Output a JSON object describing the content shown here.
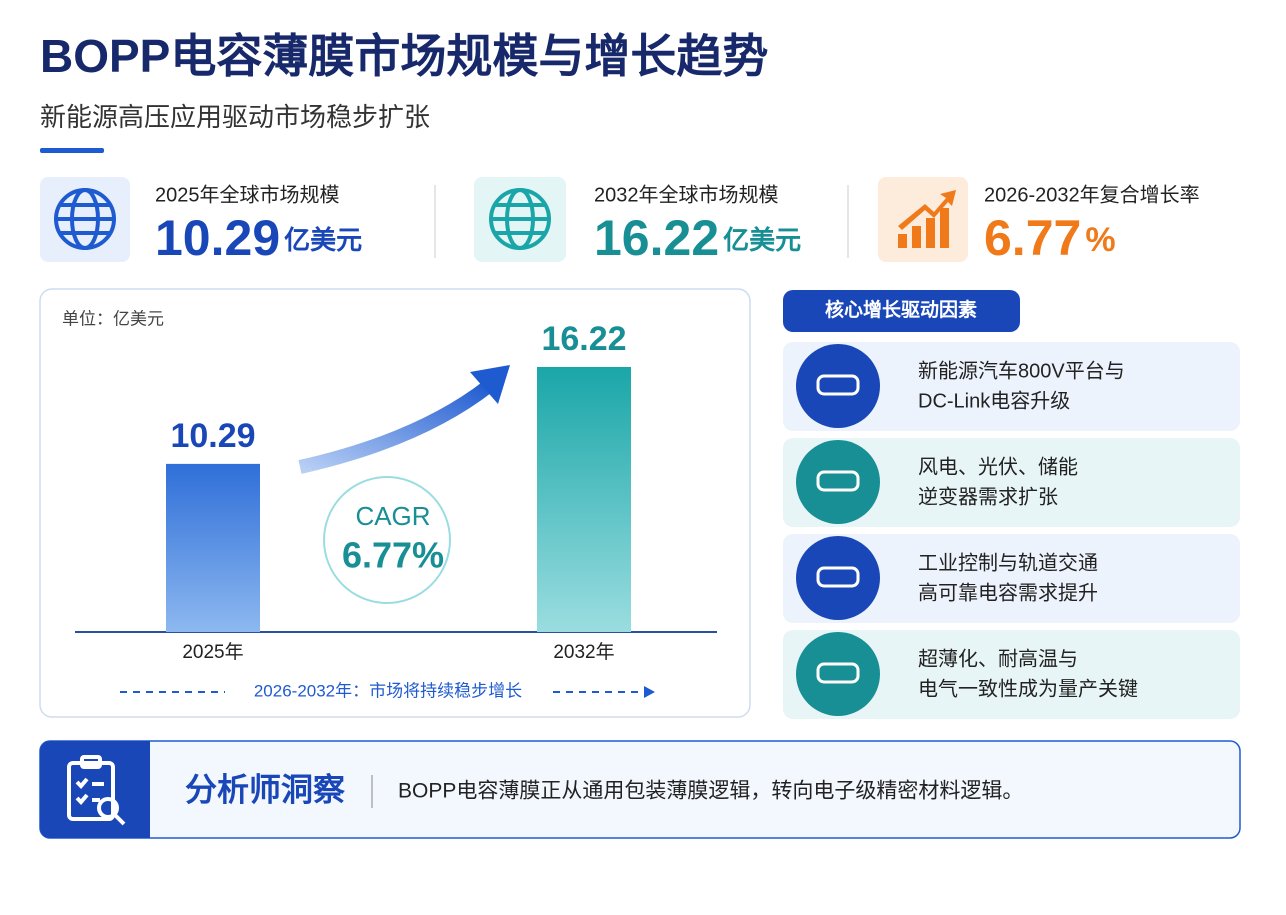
{
  "header": {
    "title": "BOPP电容薄膜市场规模与增长趋势",
    "subtitle": "新能源高压应用驱动市场稳步扩张"
  },
  "kpis": [
    {
      "label": "2025年全球市场规模",
      "value": "10.29",
      "unit": "亿美元"
    },
    {
      "label": "2032年全球市场规模",
      "value": "16.22",
      "unit": "亿美元"
    },
    {
      "label": "2026-2032年复合增长率",
      "value": "6.77",
      "unit": "%"
    }
  ],
  "chart_data": {
    "type": "bar",
    "unit_label": "单位：亿美元",
    "categories": [
      "2025年",
      "2032年"
    ],
    "values": [
      10.29,
      16.22
    ],
    "colors": [
      "#2f6fd8",
      "#1aa6a8"
    ],
    "cagr_label": "CAGR",
    "cagr_value": "6.77%",
    "footnote": "2026-2032年：市场将持续稳步增长"
  },
  "drivers": {
    "title": "核心增长驱动因素",
    "items": [
      [
        "新能源汽车800V平台与",
        "DC-Link电容升级"
      ],
      [
        "风电、光伏、储能",
        "逆变器需求扩张"
      ],
      [
        "工业控制与轨道交通",
        "高可靠电容需求提升"
      ],
      [
        "超薄化、耐高温与",
        "电气一致性成为量产关键"
      ]
    ]
  },
  "insight": {
    "title": "分析师洞察",
    "text": "BOPP电容薄膜正从通用包装薄膜逻辑，转向电子级精密材料逻辑。"
  }
}
